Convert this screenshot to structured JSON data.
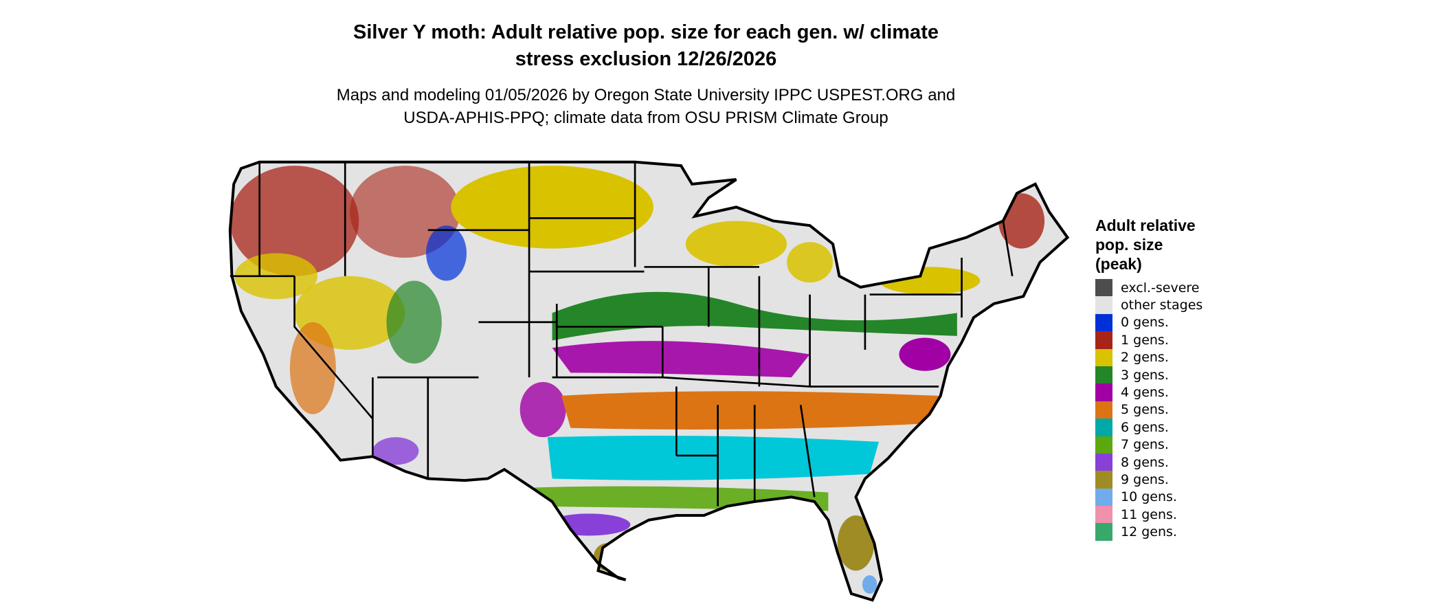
{
  "title": "Silver Y moth: Adult relative pop. size for each gen. w/ climate stress exclusion 12/26/2026",
  "title_lines": [
    "Silver Y moth: Adult relative pop. size for each gen. w/ climate",
    "stress exclusion 12/26/2026"
  ],
  "subtitle_lines": [
    "Maps and modeling 01/05/2026 by Oregon State University IPPC USPEST.ORG and",
    "USDA-APHIS-PPQ; climate data from OSU PRISM Climate Group"
  ],
  "map": {
    "region": "Contiguous United States",
    "base_color": "#e3e3e3",
    "border_color": "#000000"
  },
  "legend": {
    "title_lines": [
      "Adult relative",
      "pop. size",
      "(peak)"
    ],
    "items": [
      {
        "label": "excl.-severe",
        "color": "#4d4d4d"
      },
      {
        "label": "other stages",
        "color": "#e3e3e3"
      },
      {
        "label": "0 gens.",
        "color": "#0030d8"
      },
      {
        "label": "1 gens.",
        "color": "#a82418"
      },
      {
        "label": "2 gens.",
        "color": "#d9c200"
      },
      {
        "label": "3 gens.",
        "color": "#248628"
      },
      {
        "label": "4 gens.",
        "color": "#a000a4"
      },
      {
        "label": "5 gens.",
        "color": "#dc7414"
      },
      {
        "label": "6 gens.",
        "color": "#00a8a8"
      },
      {
        "label": "7 gens.",
        "color": "#5ca810"
      },
      {
        "label": "8 gens.",
        "color": "#8840d8"
      },
      {
        "label": "9 gens.",
        "color": "#a08c24"
      },
      {
        "label": "10 gens.",
        "color": "#70acec"
      },
      {
        "label": "11 gens.",
        "color": "#f090ac"
      },
      {
        "label": "12 gens.",
        "color": "#38a86c"
      }
    ]
  }
}
